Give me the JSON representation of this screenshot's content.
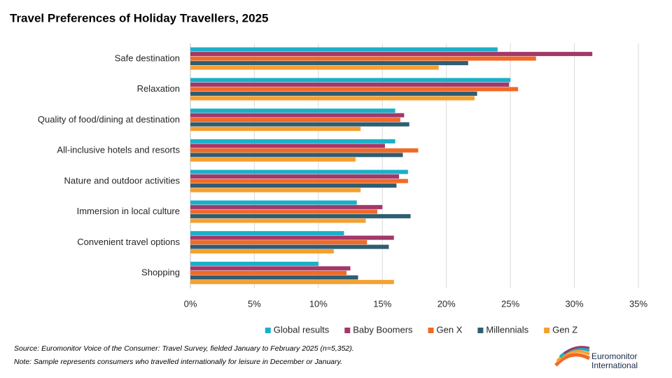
{
  "chart_data": {
    "type": "hbar",
    "title": "Travel Preferences of Holiday Travellers, 2025",
    "categories": [
      "Safe destination",
      "Relaxation",
      "Quality of food/dining at destination",
      "All-inclusive hotels and resorts",
      "Nature and outdoor activities",
      "Immersion in local culture",
      "Convenient travel options",
      "Shopping"
    ],
    "series": [
      {
        "name": "Global results",
        "color": "#1ab0c8",
        "values": [
          24.0,
          25.0,
          16.0,
          16.0,
          17.0,
          13.0,
          12.0,
          10.0
        ]
      },
      {
        "name": "Baby Boomers",
        "color": "#a2386a",
        "values": [
          31.4,
          24.9,
          16.7,
          15.2,
          16.3,
          15.0,
          15.9,
          12.5
        ]
      },
      {
        "name": "Gen X",
        "color": "#f06a26",
        "values": [
          27.0,
          25.6,
          16.4,
          17.8,
          17.0,
          14.6,
          13.8,
          12.2
        ]
      },
      {
        "name": "Millennials",
        "color": "#2f5d72",
        "values": [
          21.7,
          22.4,
          17.1,
          16.6,
          16.1,
          17.2,
          15.5,
          13.1
        ]
      },
      {
        "name": "Gen Z",
        "color": "#f5a031",
        "values": [
          19.4,
          22.2,
          13.3,
          12.9,
          13.3,
          13.7,
          11.2,
          15.9
        ]
      }
    ],
    "xlim": [
      0,
      35
    ],
    "xticks": [
      {
        "value": 0,
        "label": "0%"
      },
      {
        "value": 5,
        "label": "5%"
      },
      {
        "value": 10,
        "label": "10%"
      },
      {
        "value": 15,
        "label": "15%"
      },
      {
        "value": 20,
        "label": "20%"
      },
      {
        "value": 25,
        "label": "25%"
      },
      {
        "value": 30,
        "label": "30%"
      },
      {
        "value": 35,
        "label": "35%"
      }
    ],
    "grid": true,
    "legend": "bottom",
    "footnotes": [
      "Source: Euromonitor Voice of the Consumer: Travel Survey, fielded January to February 2025 (n=5,352).",
      "Note: Sample represents consumers who travelled internationally for leisure in December or January."
    ],
    "brand": [
      "Euromonitor",
      "International"
    ]
  }
}
